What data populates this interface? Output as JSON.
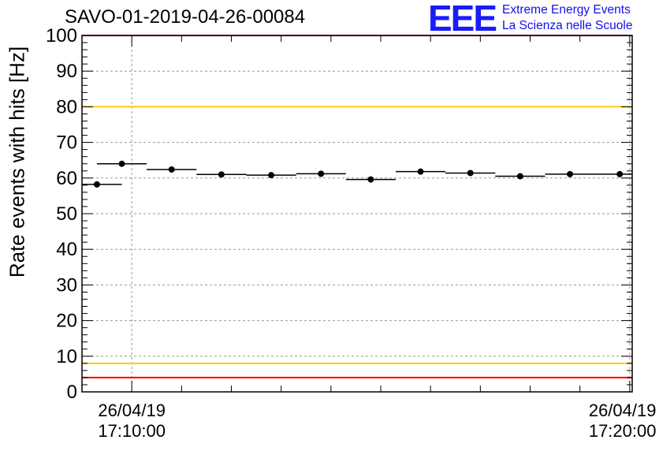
{
  "header": {
    "run_title": "SAVO-01-2019-04-26-00084",
    "logo_text": "EEE",
    "logo_line1": "Extreme Energy Events",
    "logo_line2": "La Scienza nelle Scuole"
  },
  "chart_data": {
    "type": "scatter",
    "title": "SAVO-01-2019-04-26-00084",
    "xlabel": "",
    "ylabel": "Rate events with hits [Hz]",
    "ylim": [
      0,
      100
    ],
    "yticks": [
      "0",
      "10",
      "20",
      "30",
      "40",
      "50",
      "60",
      "70",
      "80",
      "90",
      "100"
    ],
    "xlim_minutes": [
      -1.0,
      10.05
    ],
    "xticks": [
      {
        "minute": 0,
        "line1": "26/04/19",
        "line2": "17:10:00"
      },
      {
        "minute": 10,
        "line1": "26/04/19",
        "line2": "17:20:00"
      }
    ],
    "grid": true,
    "series": [
      {
        "name": "rate",
        "points": [
          {
            "x": -0.7,
            "y": 58.2,
            "xerr": 0.5
          },
          {
            "x": -0.2,
            "y": 64.0,
            "xerr": 0.5
          },
          {
            "x": 0.8,
            "y": 62.4,
            "xerr": 0.5
          },
          {
            "x": 1.8,
            "y": 61.0,
            "xerr": 0.5
          },
          {
            "x": 2.8,
            "y": 60.8,
            "xerr": 0.5
          },
          {
            "x": 3.8,
            "y": 61.2,
            "xerr": 0.5
          },
          {
            "x": 4.8,
            "y": 59.6,
            "xerr": 0.5
          },
          {
            "x": 5.8,
            "y": 61.8,
            "xerr": 0.5
          },
          {
            "x": 6.8,
            "y": 61.4,
            "xerr": 0.5
          },
          {
            "x": 7.8,
            "y": 60.5,
            "xerr": 0.5
          },
          {
            "x": 8.8,
            "y": 61.1,
            "xerr": 0.5
          },
          {
            "x": 9.8,
            "y": 61.1,
            "xerr": 0.5
          }
        ]
      }
    ],
    "reference_lines": [
      {
        "name": "upper-red-limit",
        "y": 100,
        "color": "#ff0000"
      },
      {
        "name": "upper-yellow-limit",
        "y": 80,
        "color": "#ffcc00"
      },
      {
        "name": "lower-yellow-limit",
        "y": 8,
        "color": "#ffcc00"
      },
      {
        "name": "lower-red-limit",
        "y": 4,
        "color": "#ff0000"
      }
    ]
  }
}
